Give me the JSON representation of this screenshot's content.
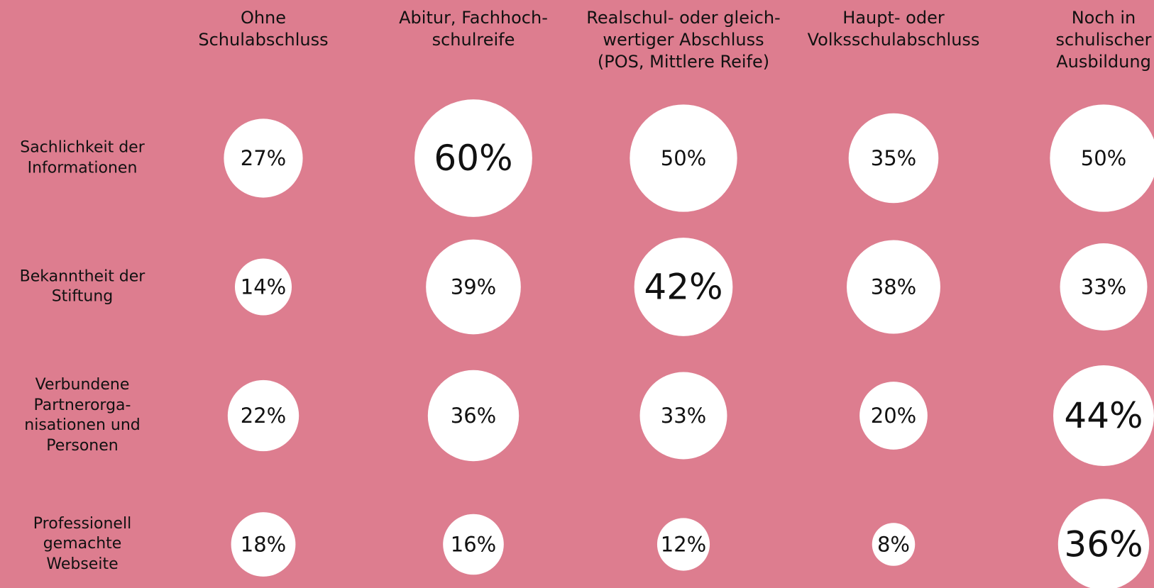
{
  "chart_data": {
    "type": "bubble",
    "categories": [
      "Ohne\nSchulabschluss",
      "Abitur, Fachhoch-\nschulreife",
      "Realschul- oder gleich-\nwertiger Abschluss\n(POS, Mittlere Reife)",
      "Haupt- oder\nVolksschulabschluss",
      "Noch in\nschulischer\nAusbildung"
    ],
    "color": "#ffffff",
    "background": "#dd7d8f",
    "series": [
      {
        "name": "Sachlichkeit der\nInformationen",
        "values": [
          27,
          60,
          50,
          35,
          50
        ],
        "value_labels": [
          "27%",
          "60%",
          "50%",
          "35%",
          "50%"
        ]
      },
      {
        "name": "Bekanntheit der\nStiftung",
        "values": [
          14,
          39,
          42,
          38,
          33
        ],
        "value_labels": [
          "14%",
          "39%",
          "42%",
          "38%",
          "33%"
        ]
      },
      {
        "name": "Verbundene\nPartnerorga-\nnisationen und\nPersonen",
        "values": [
          22,
          36,
          33,
          20,
          44
        ],
        "value_labels": [
          "22%",
          "36%",
          "33%",
          "20%",
          "44%"
        ]
      },
      {
        "name": "Professionell\ngemachte\nWebseite",
        "values": [
          18,
          16,
          12,
          8,
          36
        ],
        "value_labels": [
          "18%",
          "16%",
          "12%",
          "8%",
          "36%"
        ]
      }
    ]
  }
}
